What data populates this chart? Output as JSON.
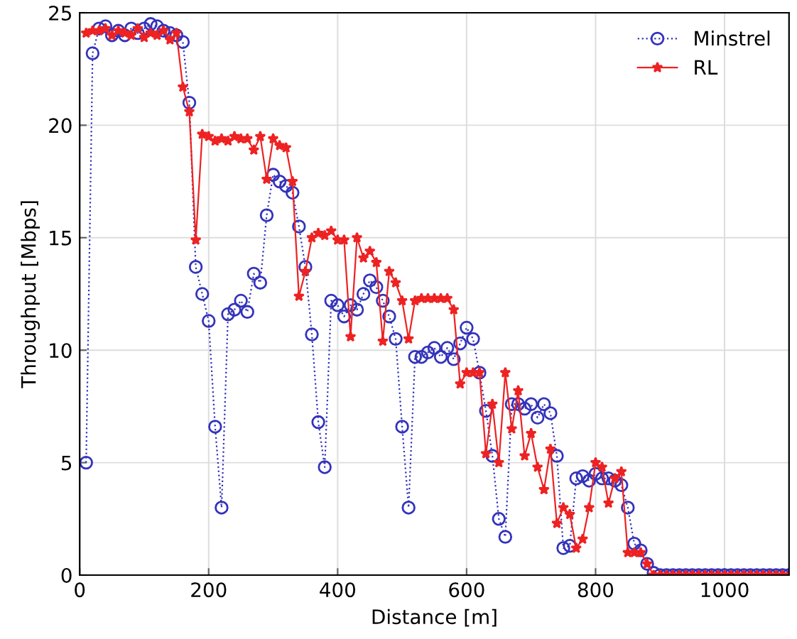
{
  "chart_data": {
    "type": "line",
    "xlabel": "Distance [m]",
    "ylabel": "Throughput [Mbps]",
    "x": [
      10,
      20,
      30,
      40,
      50,
      60,
      70,
      80,
      90,
      100,
      110,
      120,
      130,
      140,
      150,
      160,
      170,
      180,
      190,
      200,
      210,
      220,
      230,
      240,
      250,
      260,
      270,
      280,
      290,
      300,
      310,
      320,
      330,
      340,
      350,
      360,
      370,
      380,
      390,
      400,
      410,
      420,
      430,
      440,
      450,
      460,
      470,
      480,
      490,
      500,
      510,
      520,
      530,
      540,
      550,
      560,
      570,
      580,
      590,
      600,
      610,
      620,
      630,
      640,
      650,
      660,
      670,
      680,
      690,
      700,
      710,
      720,
      730,
      740,
      750,
      760,
      770,
      780,
      790,
      800,
      810,
      820,
      830,
      840,
      850,
      860,
      870,
      880,
      890,
      900,
      910,
      920,
      930,
      940,
      950,
      960,
      970,
      980,
      990,
      1000,
      1010,
      1020,
      1030,
      1040,
      1050,
      1060,
      1070,
      1080,
      1090,
      1100
    ],
    "series": [
      {
        "name": "Minstrel",
        "color": "#3333bb",
        "marker": "circle",
        "line_style": "dotted",
        "values": [
          5.0,
          23.2,
          24.3,
          24.4,
          24.0,
          24.2,
          24.0,
          24.3,
          24.1,
          24.3,
          24.5,
          24.4,
          24.2,
          24.1,
          24.0,
          23.7,
          21.0,
          13.7,
          12.5,
          11.3,
          6.6,
          3.0,
          11.6,
          11.8,
          12.2,
          11.7,
          13.4,
          13.0,
          16.0,
          17.8,
          17.5,
          17.3,
          17.0,
          15.5,
          13.7,
          10.7,
          6.8,
          4.8,
          12.2,
          12.0,
          11.5,
          12.0,
          11.8,
          12.5,
          13.1,
          12.8,
          12.2,
          11.5,
          10.5,
          6.6,
          3.0,
          9.7,
          9.7,
          9.9,
          10.1,
          9.7,
          10.1,
          9.6,
          10.3,
          11.0,
          10.5,
          9.0,
          7.3,
          5.3,
          2.5,
          1.7,
          7.6,
          7.6,
          7.4,
          7.6,
          7.0,
          7.6,
          7.2,
          5.3,
          1.2,
          1.3,
          4.3,
          4.4,
          4.2,
          4.5,
          4.3,
          4.3,
          4.2,
          4.0,
          3.0,
          1.4,
          1.1,
          0.5,
          0.1,
          0,
          0,
          0,
          0,
          0,
          0,
          0,
          0,
          0,
          0,
          0,
          0,
          0,
          0,
          0,
          0,
          0,
          0,
          0,
          0,
          0
        ]
      },
      {
        "name": "RL",
        "color": "#ee2222",
        "marker": "star",
        "line_style": "solid",
        "values": [
          24.1,
          24.2,
          24.2,
          24.3,
          24.0,
          24.2,
          24.1,
          24.0,
          24.3,
          23.9,
          24.1,
          24.0,
          24.2,
          23.8,
          24.1,
          21.7,
          20.6,
          14.9,
          19.6,
          19.5,
          19.3,
          19.4,
          19.3,
          19.5,
          19.4,
          19.4,
          18.9,
          19.5,
          17.6,
          19.4,
          19.1,
          19.0,
          17.5,
          12.4,
          13.5,
          15.0,
          15.2,
          15.1,
          15.3,
          14.9,
          14.9,
          10.6,
          15.0,
          14.1,
          14.4,
          13.9,
          10.4,
          13.5,
          13.0,
          12.2,
          10.5,
          12.2,
          12.3,
          12.3,
          12.3,
          12.3,
          12.3,
          11.8,
          8.5,
          9.0,
          9.0,
          9.0,
          5.4,
          7.6,
          5.0,
          9.0,
          6.5,
          8.2,
          5.3,
          6.3,
          4.8,
          3.8,
          5.6,
          2.3,
          3.0,
          2.7,
          1.2,
          1.6,
          3.0,
          5.0,
          4.8,
          3.2,
          4.3,
          4.6,
          1.0,
          1.0,
          1.0,
          0.5,
          0,
          0,
          0,
          0,
          0,
          0,
          0,
          0,
          0,
          0,
          0,
          0,
          0,
          0,
          0,
          0,
          0,
          0,
          0,
          0,
          0,
          0
        ]
      }
    ],
    "xlim": [
      0,
      1100
    ],
    "xticks": [
      0,
      200,
      400,
      600,
      800,
      1000
    ],
    "ylim": [
      0,
      25
    ],
    "yticks": [
      0,
      5,
      10,
      15,
      20,
      25
    ],
    "grid": true,
    "legend": "top right"
  }
}
